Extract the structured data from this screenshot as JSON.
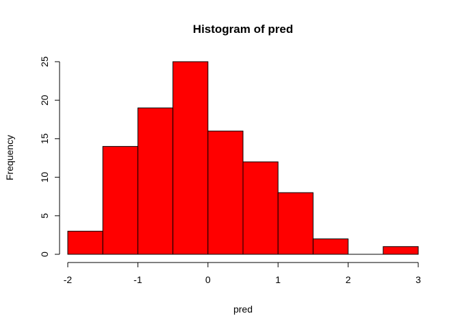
{
  "chart_data": {
    "type": "bar",
    "title": "Histogram of pred",
    "xlabel": "pred",
    "ylabel": "Frequency",
    "bins": [
      {
        "x0": -2.0,
        "x1": -1.5,
        "count": 3
      },
      {
        "x0": -1.5,
        "x1": -1.0,
        "count": 14
      },
      {
        "x0": -1.0,
        "x1": -0.5,
        "count": 19
      },
      {
        "x0": -0.5,
        "x1": 0.0,
        "count": 25
      },
      {
        "x0": 0.0,
        "x1": 0.5,
        "count": 16
      },
      {
        "x0": 0.5,
        "x1": 1.0,
        "count": 12
      },
      {
        "x0": 1.0,
        "x1": 1.5,
        "count": 8
      },
      {
        "x0": 1.5,
        "x1": 2.0,
        "count": 2
      },
      {
        "x0": 2.0,
        "x1": 2.5,
        "count": 0
      },
      {
        "x0": 2.5,
        "x1": 3.0,
        "count": 1
      }
    ],
    "xlim": [
      -2,
      3
    ],
    "ylim": [
      0,
      25
    ],
    "x_ticks": [
      -2,
      -1,
      0,
      1,
      2,
      3
    ],
    "y_ticks": [
      0,
      5,
      10,
      15,
      20,
      25
    ],
    "bar_color": "#ff0000",
    "grid": false
  }
}
